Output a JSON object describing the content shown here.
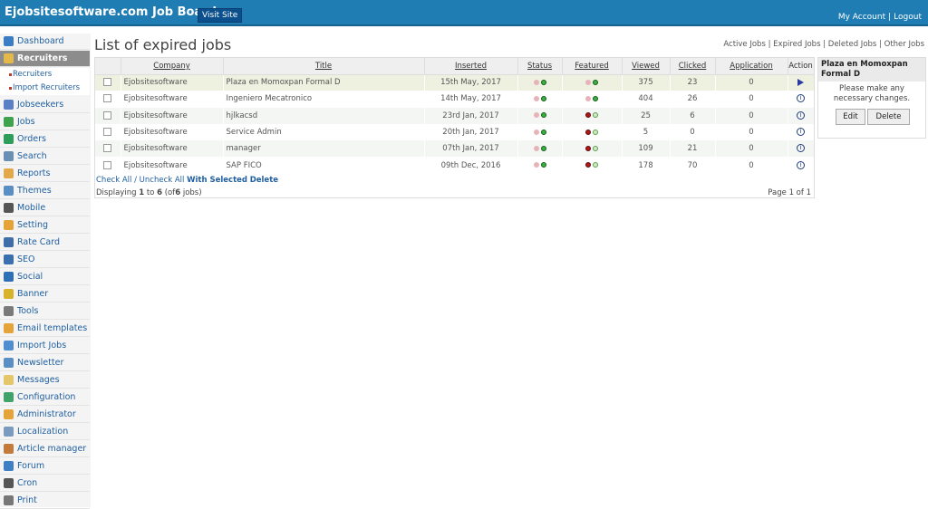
{
  "header": {
    "brand": "Ejobsitesoftware.com Job Board",
    "visit_site": "Visit Site",
    "my_account": "My Account",
    "separator": "|",
    "logout": "Logout"
  },
  "sidebar": {
    "items": [
      {
        "label": "Dashboard",
        "icon": "home-icon",
        "color": "#3b7dc4"
      },
      {
        "label": "Recruiters",
        "icon": "recruiter-icon",
        "color": "#e5b84a",
        "active": true
      },
      {
        "label": "Jobseekers",
        "icon": "jobseekers-icon",
        "color": "#5a7fc4"
      },
      {
        "label": "Jobs",
        "icon": "jobs-icon",
        "color": "#3fa34d"
      },
      {
        "label": "Orders",
        "icon": "orders-icon",
        "color": "#2f9e5b"
      },
      {
        "label": "Search",
        "icon": "search-icon",
        "color": "#6a8fb5"
      },
      {
        "label": "Reports",
        "icon": "reports-icon",
        "color": "#e3a84a"
      },
      {
        "label": "Themes",
        "icon": "themes-icon",
        "color": "#5a8fc4"
      },
      {
        "label": "Mobile",
        "icon": "mobile-icon",
        "color": "#555555"
      },
      {
        "label": "Setting",
        "icon": "setting-icon",
        "color": "#e5a43a"
      },
      {
        "label": "Rate Card",
        "icon": "dollar-icon",
        "color": "#3f6fa8"
      },
      {
        "label": "SEO",
        "icon": "seo-icon",
        "color": "#3a6fb0"
      },
      {
        "label": "Social",
        "icon": "social-icon",
        "color": "#2f6fb5"
      },
      {
        "label": "Banner",
        "icon": "banner-icon",
        "color": "#d8b22a"
      },
      {
        "label": "Tools",
        "icon": "tools-icon",
        "color": "#7a7a7a"
      },
      {
        "label": "Email templates",
        "icon": "email-icon",
        "color": "#e5a43a"
      },
      {
        "label": "Import Jobs",
        "icon": "import-icon",
        "color": "#4f8fd0"
      },
      {
        "label": "Newsletter",
        "icon": "newsletter-icon",
        "color": "#5a8fc4"
      },
      {
        "label": "Messages",
        "icon": "messages-icon",
        "color": "#e5c76a"
      },
      {
        "label": "Configuration",
        "icon": "configuration-icon",
        "color": "#3fa36a"
      },
      {
        "label": "Administrator",
        "icon": "administrator-icon",
        "color": "#e5a43a"
      },
      {
        "label": "Localization",
        "icon": "localization-icon",
        "color": "#7a9abf"
      },
      {
        "label": "Article manager",
        "icon": "article-icon",
        "color": "#c47a3a"
      },
      {
        "label": "Forum",
        "icon": "forum-icon",
        "color": "#3f7fc4"
      },
      {
        "label": "Cron",
        "icon": "clock-icon",
        "color": "#555555"
      },
      {
        "label": "Print",
        "icon": "print-icon",
        "color": "#777777"
      }
    ],
    "sub_items": [
      "Recruiters",
      "Import Recruiters"
    ]
  },
  "main": {
    "title": "List of expired jobs",
    "filters": [
      "Active Jobs",
      "Expired Jobs",
      "Deleted Jobs",
      "Other Jobs"
    ],
    "filter_sep": " | ",
    "columns": [
      "",
      "Company",
      "Title",
      "Inserted",
      "Status",
      "Featured",
      "Viewed",
      "Clicked",
      "Application",
      "Action"
    ],
    "rows": [
      {
        "company": "Ejobsitesoftware",
        "title": "Plaza en Momoxpan Formal D",
        "inserted": "15th May, 2017",
        "status": [
          "pink",
          "green"
        ],
        "featured": [
          "pink",
          "green"
        ],
        "viewed": "375",
        "clicked": "23",
        "application": "0",
        "action": "play-icon"
      },
      {
        "company": "Ejobsitesoftware",
        "title": "Ingeniero Mecatronico",
        "inserted": "14th May, 2017",
        "status": [
          "pink",
          "green"
        ],
        "featured": [
          "pink",
          "green"
        ],
        "viewed": "404",
        "clicked": "26",
        "application": "0",
        "action": "info-icon"
      },
      {
        "company": "Ejobsitesoftware",
        "title": "hjlkacsd",
        "inserted": "23rd Jan, 2017",
        "status": [
          "pink",
          "green"
        ],
        "featured": [
          "red",
          "lgreen"
        ],
        "viewed": "25",
        "clicked": "6",
        "application": "0",
        "action": "info-icon"
      },
      {
        "company": "Ejobsitesoftware",
        "title": "Service Admin",
        "inserted": "20th Jan, 2017",
        "status": [
          "pink",
          "green"
        ],
        "featured": [
          "red",
          "lgreen"
        ],
        "viewed": "5",
        "clicked": "0",
        "application": "0",
        "action": "info-icon"
      },
      {
        "company": "Ejobsitesoftware",
        "title": "manager",
        "inserted": "07th Jan, 2017",
        "status": [
          "pink",
          "green"
        ],
        "featured": [
          "red",
          "lgreen"
        ],
        "viewed": "109",
        "clicked": "21",
        "application": "0",
        "action": "info-icon"
      },
      {
        "company": "Ejobsitesoftware",
        "title": "SAP FICO",
        "inserted": "09th Dec, 2016",
        "status": [
          "pink",
          "green"
        ],
        "featured": [
          "red",
          "lgreen"
        ],
        "viewed": "178",
        "clicked": "70",
        "application": "0",
        "action": "info-icon"
      }
    ],
    "check_all": "Check All",
    "uncheck_all": "Uncheck All",
    "with_selected": "With Selected",
    "delete": "Delete",
    "displaying_prefix": "Displaying",
    "display_from": "1",
    "display_to_word": "to",
    "display_to": "6",
    "display_of": "(of",
    "display_total": "6",
    "display_suffix": "jobs)",
    "page_info": "Page 1 of 1"
  },
  "panel": {
    "title": "Plaza en Momoxpan Formal D",
    "message": "Please make any necessary changes.",
    "edit": "Edit",
    "delete": "Delete"
  }
}
